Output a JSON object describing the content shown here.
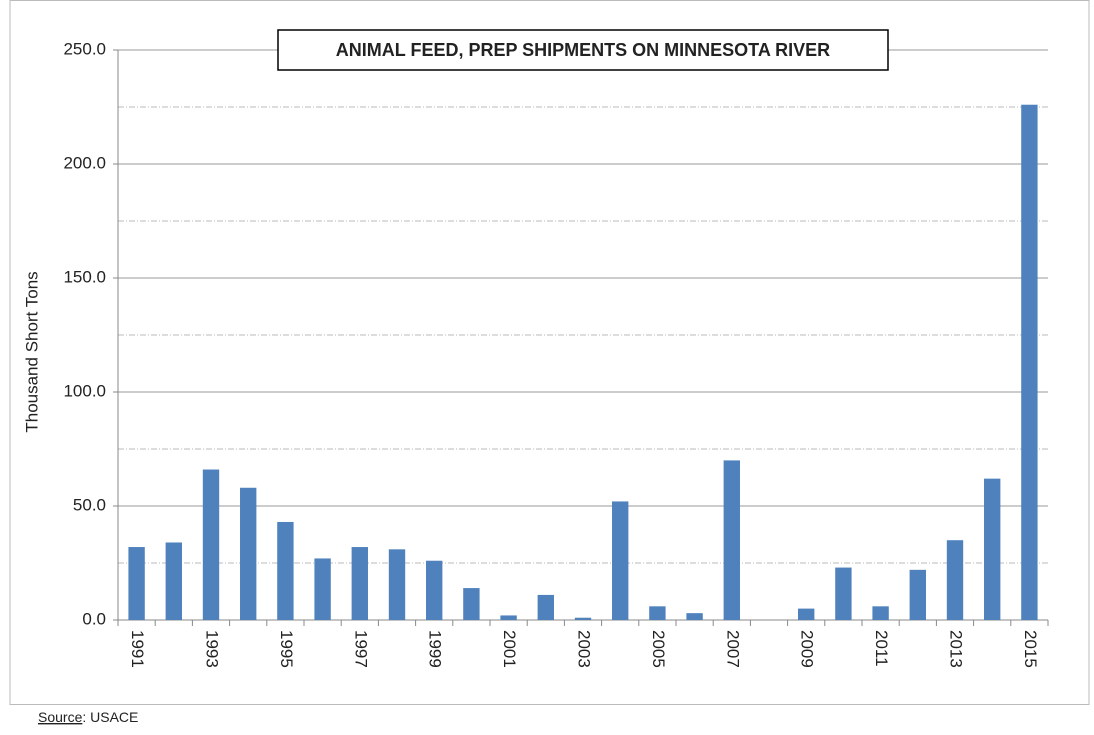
{
  "chart_data": {
    "type": "bar",
    "title": "ANIMAL FEED, PREP SHIPMENTS ON MINNESOTA RIVER",
    "y_label": "Thousand Short Tons",
    "source_label": "Source",
    "source": ":  USACE",
    "categories": [
      "1991",
      null,
      "1993",
      null,
      "1995",
      null,
      "1997",
      null,
      "1999",
      null,
      "2001",
      null,
      "2003",
      null,
      "2005",
      null,
      "2007",
      null,
      "2009",
      null,
      "2011",
      null,
      "2013",
      null,
      "2015"
    ],
    "values": [
      32,
      34,
      66,
      58,
      43,
      27,
      32,
      31,
      26,
      14,
      2,
      11,
      1,
      52,
      6,
      3,
      70,
      0,
      5,
      23,
      6,
      22,
      35,
      62,
      226
    ],
    "color": "#4f81bd",
    "ylim": [
      0,
      250
    ],
    "yticks": [
      {
        "value": 0,
        "label": "0.0"
      },
      {
        "value": 50,
        "label": "50.0"
      },
      {
        "value": 100,
        "label": "100.0"
      },
      {
        "value": 150,
        "label": "150.0"
      },
      {
        "value": 200,
        "label": "200.0"
      },
      {
        "value": 250,
        "label": "250.0"
      }
    ],
    "minor_yticks": [
      25,
      75,
      125,
      175,
      225
    ],
    "grid": true
  }
}
